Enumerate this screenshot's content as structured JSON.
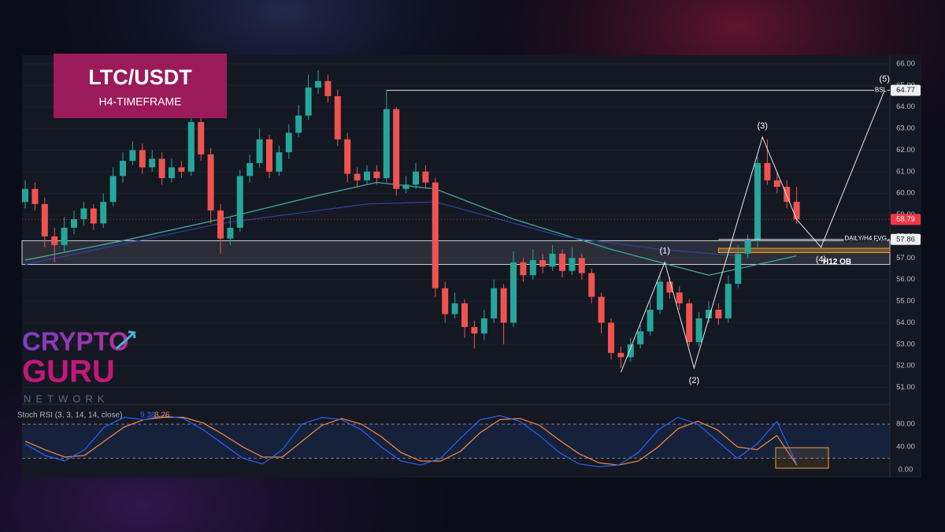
{
  "chart_data": {
    "type": "candlestick",
    "title": "LTC/USDT",
    "subtitle": "H4-TIMEFRAME",
    "open": [
      59.6,
      60.2,
      59.5,
      58.0,
      57.6,
      58.4,
      58.8,
      59.3,
      58.6,
      59.6,
      60.8,
      61.5,
      62.0,
      61.2,
      61.6,
      60.7,
      61.2,
      61.0,
      63.3,
      61.8,
      59.2,
      57.9,
      58.4,
      60.8,
      61.4,
      62.5,
      61.0,
      61.9,
      62.8,
      63.6,
      64.9,
      65.2,
      64.5,
      62.5,
      60.9,
      60.6,
      61.0,
      60.7,
      63.9,
      60.2,
      60.4,
      61.0,
      60.5,
      55.6,
      54.4,
      54.9,
      53.8,
      53.5,
      54.2,
      55.6,
      54.0,
      56.8,
      56.2,
      56.9,
      56.6,
      57.2,
      56.4,
      57.0,
      56.3,
      55.2,
      54.0,
      52.6,
      52.4,
      53.0,
      53.6,
      54.6,
      55.9,
      55.4,
      54.9,
      53.1,
      54.2,
      54.6,
      54.2,
      55.8,
      57.2,
      57.8,
      61.4,
      60.6,
      60.3,
      59.6
    ],
    "high": [
      60.6,
      60.5,
      59.8,
      58.4,
      58.9,
      59.2,
      59.6,
      59.5,
      60.0,
      61.2,
      61.9,
      62.4,
      62.3,
      62.0,
      61.9,
      61.6,
      61.5,
      63.7,
      63.5,
      62.1,
      59.5,
      58.9,
      61.1,
      61.8,
      63.0,
      62.7,
      62.2,
      63.2,
      64.1,
      65.5,
      65.7,
      65.5,
      64.8,
      62.8,
      61.2,
      61.3,
      61.3,
      64.77,
      64.0,
      60.8,
      61.4,
      61.3,
      60.7,
      55.9,
      55.4,
      55.1,
      54.1,
      54.6,
      56.0,
      55.8,
      57.3,
      57.0,
      57.4,
      57.2,
      57.6,
      57.4,
      57.5,
      57.2,
      56.5,
      55.4,
      54.2,
      52.9,
      53.3,
      53.9,
      55.0,
      56.3,
      56.1,
      55.7,
      55.1,
      54.5,
      55.0,
      54.9,
      56.2,
      57.6,
      58.1,
      61.7,
      62.5,
      61.0,
      60.6,
      60.3
    ],
    "low": [
      59.3,
      59.2,
      57.5,
      56.8,
      57.3,
      58.1,
      58.5,
      58.3,
      58.4,
      59.4,
      60.5,
      61.3,
      60.9,
      61.0,
      60.4,
      60.5,
      60.7,
      60.8,
      61.5,
      58.6,
      57.2,
      57.6,
      58.2,
      60.5,
      61.2,
      60.7,
      60.8,
      61.6,
      62.6,
      63.4,
      64.6,
      64.2,
      62.2,
      60.5,
      60.3,
      60.4,
      60.4,
      60.5,
      59.9,
      60.0,
      60.2,
      60.2,
      55.2,
      54.0,
      54.2,
      53.3,
      52.8,
      53.2,
      54.0,
      53.0,
      53.8,
      55.9,
      56.0,
      56.3,
      56.4,
      56.1,
      56.2,
      56.0,
      54.9,
      53.5,
      52.3,
      51.9,
      52.2,
      52.8,
      53.4,
      54.4,
      55.1,
      54.6,
      52.9,
      52.9,
      54.0,
      53.9,
      54.0,
      55.6,
      57.0,
      57.5,
      60.4,
      60.0,
      59.3,
      58.6
    ],
    "close": [
      60.2,
      59.5,
      58.0,
      57.6,
      58.4,
      58.8,
      59.3,
      58.6,
      59.6,
      60.8,
      61.5,
      62.0,
      61.2,
      61.6,
      60.7,
      61.2,
      61.0,
      63.3,
      61.8,
      59.2,
      57.9,
      58.4,
      60.8,
      61.4,
      62.5,
      61.0,
      61.9,
      62.8,
      63.6,
      64.9,
      65.2,
      64.5,
      62.5,
      60.9,
      60.6,
      61.0,
      60.7,
      63.9,
      60.2,
      60.4,
      61.0,
      60.5,
      55.6,
      54.4,
      54.9,
      53.8,
      53.5,
      54.2,
      55.6,
      54.0,
      56.8,
      56.2,
      56.9,
      56.6,
      57.2,
      56.4,
      57.0,
      56.3,
      55.2,
      54.0,
      52.6,
      52.4,
      53.0,
      53.6,
      54.6,
      55.9,
      55.4,
      54.9,
      53.1,
      54.2,
      54.6,
      54.2,
      55.8,
      57.2,
      57.8,
      61.4,
      60.6,
      60.3,
      59.6,
      58.79
    ],
    "up_color": "#26a69a",
    "down_color": "#ef5350",
    "ylim": [
      50.4,
      66.4
    ],
    "yticks": [
      {
        "value": 51,
        "label": "51.00"
      },
      {
        "value": 52,
        "label": "52.00"
      },
      {
        "value": 53,
        "label": "53.00"
      },
      {
        "value": 54,
        "label": "54.00"
      },
      {
        "value": 55,
        "label": "55.00"
      },
      {
        "value": 56,
        "label": "56.00"
      },
      {
        "value": 57,
        "label": "57.00"
      },
      {
        "value": 58,
        "label": "58.00"
      },
      {
        "value": 59,
        "label": "59.00"
      },
      {
        "value": 60,
        "label": "60.00"
      },
      {
        "value": 61,
        "label": "61.00"
      },
      {
        "value": 62,
        "label": "62.00"
      },
      {
        "value": 63,
        "label": "63.00"
      },
      {
        "value": 64,
        "label": "64.00"
      },
      {
        "value": 65,
        "label": "65.00"
      },
      {
        "value": 66,
        "label": "66.00"
      }
    ],
    "moving_averages": [
      {
        "color": "#3fa99f",
        "x": [
          0,
          10,
          20,
          30,
          36,
          42,
          50,
          60,
          70,
          79
        ],
        "values": [
          56.9,
          57.8,
          58.8,
          59.9,
          60.5,
          60.2,
          58.8,
          57.4,
          56.2,
          57.1
        ]
      },
      {
        "color": "#2f3f9e",
        "x": [
          0,
          20,
          35,
          42,
          55,
          65,
          73
        ],
        "values": [
          56.7,
          58.6,
          59.5,
          59.6,
          58.0,
          57.4,
          57.1
        ]
      }
    ],
    "zones": [
      {
        "low": 56.7,
        "high": 57.8,
        "color": "#9598a1"
      },
      {
        "low": 57.25,
        "high": 57.45,
        "color": "#f0a030",
        "start": 71,
        "label": "H12 OB"
      }
    ],
    "levels": [
      {
        "value": 64.77,
        "start": 37,
        "label": "BSL"
      },
      {
        "value": 57.86,
        "start": 71,
        "label": "DAILY/H4 FVG"
      }
    ],
    "last_price": {
      "value": 58.79,
      "color": "#f23645"
    },
    "wave": {
      "x": [
        61,
        65.5,
        68.5,
        75.5,
        79,
        81.5,
        88
      ],
      "y": [
        51.7,
        56.8,
        51.9,
        62.6,
        58.79,
        57.5,
        64.77
      ],
      "labels": [
        null,
        "(1)",
        "(2)",
        "(3)",
        null,
        "(4)",
        "(5)"
      ]
    },
    "stoch_rsi": {
      "title": "Stoch RSI (3, 3, 14, 14, close)",
      "ylim": [
        -10,
        108
      ],
      "yticks": [
        {
          "value": 0,
          "label": "0.00"
        },
        {
          "value": 40,
          "label": "40.00"
        },
        {
          "value": 80,
          "label": "80.00"
        }
      ],
      "bands": [
        20,
        80
      ],
      "k": {
        "color": "#2962ff",
        "values": [
          45,
          25,
          15,
          35,
          75,
          92,
          88,
          95,
          90,
          70,
          45,
          20,
          10,
          35,
          80,
          92,
          88,
          70,
          40,
          15,
          8,
          20,
          55,
          88,
          95,
          85,
          60,
          30,
          10,
          5,
          8,
          30,
          70,
          92,
          80,
          50,
          20,
          45,
          85,
          9.38
        ]
      },
      "d": {
        "color": "#ff8a3d",
        "values": [
          50,
          35,
          22,
          25,
          50,
          75,
          88,
          92,
          92,
          82,
          62,
          40,
          22,
          22,
          50,
          78,
          90,
          80,
          58,
          30,
          15,
          15,
          32,
          65,
          88,
          90,
          78,
          52,
          28,
          12,
          8,
          15,
          40,
          72,
          85,
          70,
          40,
          35,
          60,
          8.26
        ]
      }
    },
    "logo": {
      "line1": "CRYPTO",
      "line2": "GURU",
      "line3": "NETWORK"
    }
  }
}
